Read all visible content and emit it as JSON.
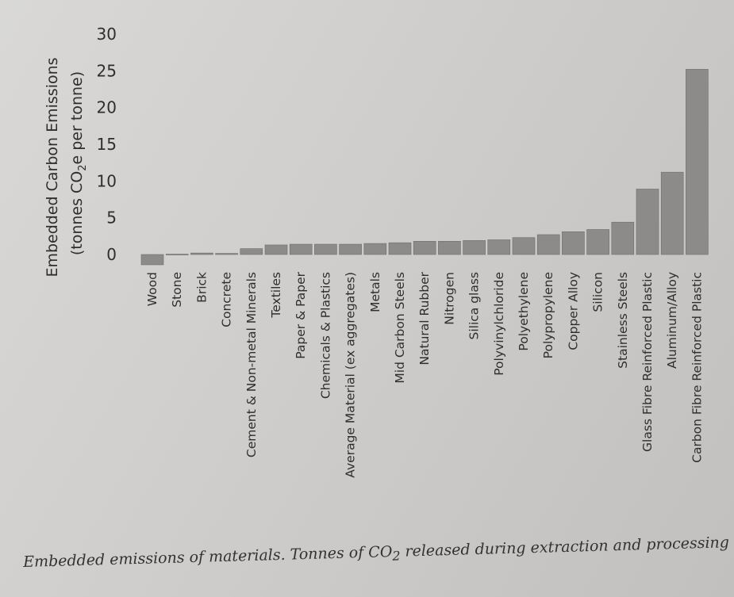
{
  "chart_data": {
    "type": "bar",
    "ylabel_line1": "Embedded Carbon Emissions",
    "ylabel_line2_prefix": "(tonnes CO",
    "ylabel_line2_sub": "2",
    "ylabel_line2_suffix": "e per tonne)",
    "ylim": [
      0,
      30
    ],
    "yticks": [
      0,
      5,
      10,
      15,
      20,
      25,
      30
    ],
    "grid": false,
    "legend": "none",
    "categories": [
      "Wood",
      "Stone",
      "Brick",
      "Concrete",
      "Cement & Non-metal Minerals",
      "Textiles",
      "Paper & Paper",
      "Chemicals & Plastics",
      "Average Material (ex aggregates)",
      "Metals",
      "Mid Carbon Steels",
      "Natural Rubber",
      "Nitrogen",
      "Silica glass",
      "Polyvinylchloride",
      "Polyethylene",
      "Polypropylene",
      "Copper Alloy",
      "Silicon",
      "Stainless Steels",
      "Glass Fibre Reinforced Plastic",
      "Aluminum/Alloy",
      "Carbon Fibre Reinforced Plastic"
    ],
    "values": [
      -1.4,
      0.05,
      0.2,
      0.15,
      0.8,
      1.3,
      1.4,
      1.4,
      1.4,
      1.5,
      1.6,
      1.8,
      1.8,
      1.9,
      2.0,
      2.3,
      2.7,
      3.1,
      3.4,
      4.4,
      8.9,
      11.2,
      25.2
    ],
    "bar_color": "#8c8b89"
  },
  "caption": {
    "part1": "Embedded emissions of  materials. Tonnes of ",
    "co": "CO",
    "sub": "2",
    "part2": " released during extraction and processing"
  }
}
